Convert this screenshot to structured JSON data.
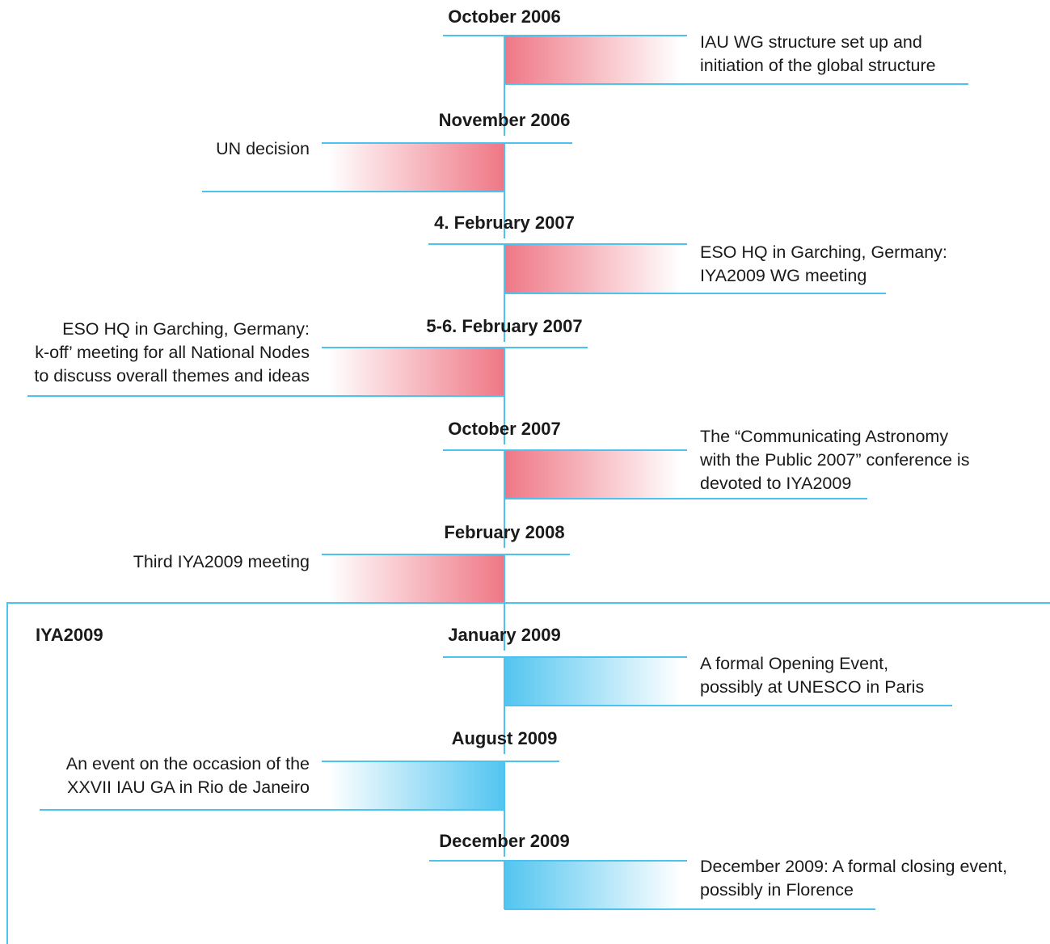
{
  "colors": {
    "line": "#4cc3ee",
    "band_pre": "#ef7785",
    "band_iya": "#52c5f0"
  },
  "section_label": "IYA2009",
  "events": [
    {
      "date": "October 2006",
      "side": "right",
      "phase": "pre",
      "lines": [
        "IAU WG structure set up and",
        "initiation of the global structure"
      ]
    },
    {
      "date": "November 2006",
      "side": "left",
      "phase": "pre",
      "lines": [
        "UN decision"
      ]
    },
    {
      "date": "4. February 2007",
      "side": "right",
      "phase": "pre",
      "lines": [
        "ESO HQ in Garching, Germany:",
        "IYA2009 WG meeting"
      ]
    },
    {
      "date": "5-6. February 2007",
      "side": "left",
      "phase": "pre",
      "lines": [
        "ESO HQ in Garching, Germany:",
        "k-off’ meeting for all National Nodes",
        "to discuss overall themes and ideas"
      ]
    },
    {
      "date": "October 2007",
      "side": "right",
      "phase": "pre",
      "lines": [
        "The “Communicating Astronomy",
        "with the Public 2007” conference is",
        "devoted to IYA2009"
      ]
    },
    {
      "date": "February 2008",
      "side": "left",
      "phase": "pre",
      "lines": [
        "Third IYA2009 meeting"
      ]
    },
    {
      "date": "January 2009",
      "side": "right",
      "phase": "iya",
      "lines": [
        "A formal Opening Event,",
        "possibly at UNESCO in Paris"
      ]
    },
    {
      "date": "August 2009",
      "side": "left",
      "phase": "iya",
      "lines": [
        "An event on the occasion of the",
        "XXVII IAU GA in Rio de Janeiro"
      ]
    },
    {
      "date": "December 2009",
      "side": "right",
      "phase": "iya",
      "lines": [
        "December 2009: A formal closing event,",
        "possibly in Florence"
      ]
    }
  ]
}
